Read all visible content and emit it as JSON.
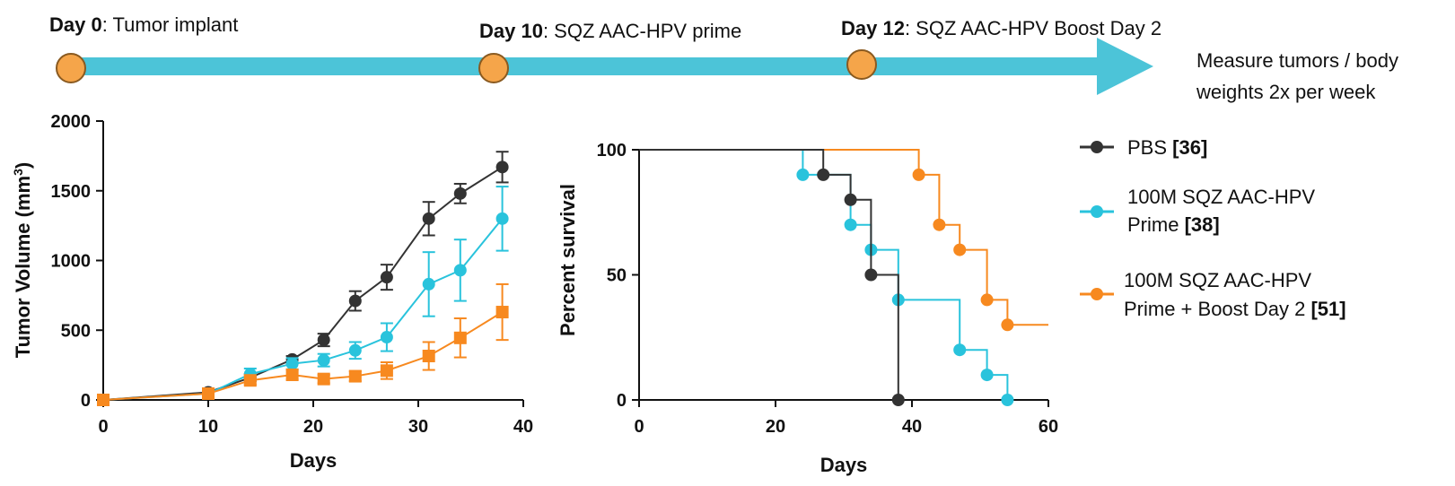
{
  "timeline": {
    "bar_color": "#4cc4d8",
    "marker_color": "#f5a54a",
    "events": [
      {
        "day_label": "Day 0",
        "text": ": Tumor implant"
      },
      {
        "day_label": "Day 10",
        "text": ": SQZ AAC-HPV prime"
      },
      {
        "day_label": "Day 12",
        "text": ": SQZ AAC-HPV Boost Day 2"
      }
    ],
    "note_lines": [
      "Measure tumors / body",
      "weights 2x per week"
    ]
  },
  "legend": {
    "entries": [
      {
        "lines": [
          "PBS "
        ],
        "bold": "[36]",
        "color": "#333333"
      },
      {
        "lines": [
          "100M SQZ AAC-HPV",
          " Prime "
        ],
        "bold": "[38]",
        "color": "#29c3dc"
      },
      {
        "lines": [
          "100M SQZ AAC-HPV",
          " Prime +  Boost Day 2 "
        ],
        "bold": "[51]",
        "color": "#f7891f"
      }
    ]
  },
  "chart_data": [
    {
      "type": "line",
      "title": "",
      "xlabel": "Days",
      "ylabel": "Tumor Volume (mm",
      "ylabel_sup": "3",
      "ylabel_end": ")",
      "xlim": [
        0,
        40
      ],
      "ylim": [
        0,
        2000
      ],
      "xticks": [
        0,
        10,
        20,
        30,
        40
      ],
      "yticks": [
        0,
        500,
        1000,
        1500,
        2000
      ],
      "xtick_labels": [
        "0",
        "10",
        "20",
        "30",
        "40"
      ],
      "ytick_labels": [
        "0",
        "500",
        "1000",
        "1500",
        "2000"
      ],
      "series": [
        {
          "name": "PBS",
          "color": "#333333",
          "marker": "circle",
          "x": [
            0,
            10,
            14,
            18,
            21,
            24,
            27,
            31,
            34,
            38
          ],
          "y": [
            0,
            55,
            160,
            290,
            430,
            710,
            880,
            1300,
            1480,
            1670
          ],
          "err": [
            0,
            12,
            25,
            25,
            45,
            70,
            90,
            120,
            70,
            110
          ]
        },
        {
          "name": "100M SQZ AAC-HPV Prime",
          "color": "#29c3dc",
          "marker": "circle",
          "x": [
            0,
            10,
            14,
            18,
            21,
            24,
            27,
            31,
            34,
            38
          ],
          "y": [
            0,
            45,
            185,
            260,
            285,
            355,
            450,
            830,
            930,
            1300
          ],
          "err": [
            0,
            10,
            40,
            40,
            45,
            60,
            100,
            230,
            220,
            230
          ]
        },
        {
          "name": "100M SQZ AAC-HPV Prime + Boost Day 2",
          "color": "#f7891f",
          "marker": "square",
          "x": [
            0,
            10,
            14,
            18,
            21,
            24,
            27,
            31,
            34,
            38
          ],
          "y": [
            0,
            45,
            140,
            180,
            150,
            170,
            210,
            315,
            445,
            630
          ],
          "err": [
            0,
            10,
            30,
            35,
            30,
            35,
            60,
            100,
            140,
            200
          ]
        }
      ]
    },
    {
      "type": "line",
      "title": "",
      "xlabel": "Days",
      "ylabel": "Percent survival",
      "xlim": [
        0,
        60
      ],
      "ylim": [
        0,
        100
      ],
      "xticks": [
        0,
        20,
        40,
        60
      ],
      "yticks": [
        0,
        50,
        100
      ],
      "xtick_labels": [
        "0",
        "20",
        "40",
        "60"
      ],
      "ytick_labels": [
        "0",
        "50",
        "100"
      ],
      "series": [
        {
          "name": "PBS",
          "color": "#333333",
          "steps": [
            [
              0,
              100
            ],
            [
              27,
              90
            ],
            [
              31,
              80
            ],
            [
              34,
              50
            ],
            [
              38,
              0
            ]
          ],
          "end": 38,
          "markers": [
            [
              27,
              90
            ],
            [
              31,
              80
            ],
            [
              34,
              50
            ],
            [
              38,
              0
            ]
          ]
        },
        {
          "name": "100M SQZ AAC-HPV Prime",
          "color": "#29c3dc",
          "steps": [
            [
              0,
              100
            ],
            [
              24,
              90
            ],
            [
              31,
              70
            ],
            [
              34,
              60
            ],
            [
              38,
              40
            ],
            [
              47,
              20
            ],
            [
              51,
              10
            ],
            [
              54,
              0
            ]
          ],
          "end": 54,
          "markers": [
            [
              24,
              90
            ],
            [
              31,
              70
            ],
            [
              34,
              60
            ],
            [
              38,
              40
            ],
            [
              47,
              20
            ],
            [
              51,
              10
            ],
            [
              54,
              0
            ]
          ]
        },
        {
          "name": "100M SQZ AAC-HPV Prime + Boost Day 2",
          "color": "#f7891f",
          "steps": [
            [
              0,
              100
            ],
            [
              41,
              90
            ],
            [
              44,
              70
            ],
            [
              47,
              60
            ],
            [
              51,
              40
            ],
            [
              54,
              30
            ]
          ],
          "end": 60,
          "markers": [
            [
              41,
              90
            ],
            [
              44,
              70
            ],
            [
              47,
              60
            ],
            [
              51,
              40
            ],
            [
              54,
              30
            ]
          ]
        }
      ]
    }
  ]
}
